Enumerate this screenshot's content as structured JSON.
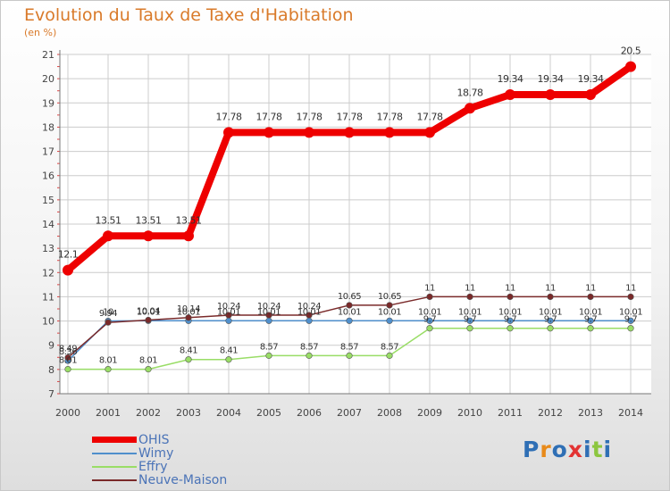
{
  "title": "Evolution du Taux de Taxe d'Habitation",
  "unit_label": "(en %)",
  "colors": {
    "title": "#d97a2a",
    "legend_text": "#4a73b7",
    "grid": "#cccccc",
    "axis": "#777777"
  },
  "chart_data": {
    "type": "line",
    "title": "Evolution du Taux de Taxe d'Habitation",
    "ylabel": "(en %)",
    "xlabel": "",
    "x": [
      "2000",
      "2001",
      "2002",
      "2003",
      "2004",
      "2005",
      "2006",
      "2007",
      "2008",
      "2009",
      "2010",
      "2011",
      "2012",
      "2013",
      "2014"
    ],
    "ylim": [
      7,
      21
    ],
    "yticks": [
      "7",
      "8",
      "9",
      "10",
      "11",
      "12",
      "13",
      "14",
      "15",
      "16",
      "17",
      "18",
      "19",
      "20",
      "21"
    ],
    "grid": true,
    "legend_position": "bottom-left",
    "series": [
      {
        "name": "OHIS",
        "color": "#ee0000",
        "values": [
          12.1,
          13.51,
          13.51,
          13.51,
          17.78,
          17.78,
          17.78,
          17.78,
          17.78,
          17.78,
          18.78,
          19.34,
          19.34,
          19.34,
          20.5
        ],
        "labels": [
          "12.1",
          "13.51",
          "13.51",
          "13.51",
          "17.78",
          "17.78",
          "17.78",
          "17.78",
          "17.78",
          "17.78",
          "18.78",
          "19.34",
          "19.34",
          "19.34",
          "20.5"
        ]
      },
      {
        "name": "Wimy",
        "color": "#4f8fcc",
        "values": [
          8.36,
          10.0,
          10.01,
          10.01,
          10.01,
          10.01,
          10.01,
          10.01,
          10.01,
          10.01,
          10.01,
          10.01,
          10.01,
          10.01,
          10.01
        ],
        "labels": [
          "8.36",
          "10",
          "10.01",
          "10.01",
          "10.01",
          "10.01",
          "10.01",
          "10.01",
          "10.01",
          "10.01",
          "10.01",
          "10.01",
          "10.01",
          "10.01",
          "10.01"
        ]
      },
      {
        "name": "Effry",
        "color": "#99dd66",
        "values": [
          8.01,
          8.01,
          8.01,
          8.41,
          8.41,
          8.57,
          8.57,
          8.57,
          8.57,
          9.7,
          9.7,
          9.7,
          9.7,
          9.7,
          9.7
        ],
        "labels": [
          "8.01",
          "8.01",
          "8.01",
          "8.41",
          "8.41",
          "8.57",
          "8.57",
          "8.57",
          "8.57",
          "9.7",
          "9.7",
          "9.7",
          "9.7",
          "9.7",
          "9.7"
        ]
      },
      {
        "name": "Neuve-Maison",
        "color": "#7a2a2a",
        "values": [
          8.49,
          9.94,
          10.04,
          10.14,
          10.24,
          10.24,
          10.24,
          10.65,
          10.65,
          11,
          11,
          11,
          11,
          11,
          11
        ],
        "labels": [
          "8.49",
          "9.94",
          "10.04",
          "10.14",
          "10.24",
          "10.24",
          "10.24",
          "10.65",
          "10.65",
          "11",
          "11",
          "11",
          "11",
          "11",
          "11"
        ]
      }
    ]
  },
  "legend": [
    {
      "name": "OHIS",
      "color": "#ee0000"
    },
    {
      "name": "Wimy",
      "color": "#4f8fcc"
    },
    {
      "name": "Effry",
      "color": "#99dd66"
    },
    {
      "name": "Neuve-Maison",
      "color": "#7a2a2a"
    }
  ],
  "logo": {
    "text": "Proxiti",
    "colors": [
      "#2f6fb5",
      "#e88a1a",
      "#2f6fb5",
      "#e33333",
      "#2f6fb5",
      "#8cc63f",
      "#2f6fb5"
    ]
  }
}
